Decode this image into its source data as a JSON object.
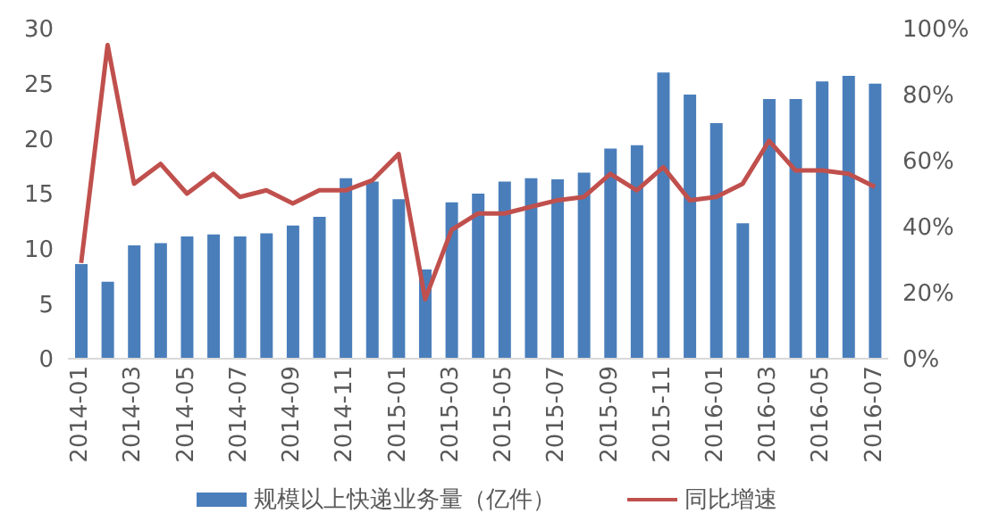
{
  "chart_data": {
    "type": "bar",
    "categories": [
      "2014-01",
      null,
      "2014-03",
      null,
      "2014-05",
      null,
      "2014-07",
      null,
      "2014-09",
      null,
      "2014-11",
      null,
      "2015-01",
      null,
      "2015-03",
      null,
      "2015-05",
      null,
      "2015-07",
      null,
      "2015-09",
      null,
      "2015-11",
      null,
      "2016-01",
      null,
      "2016-03",
      null,
      "2016-05",
      null,
      "2016-07"
    ],
    "series": [
      {
        "name": "规模以上快递业务量（亿件）",
        "color": "#4a7ebb",
        "values": [
          8.6,
          7.0,
          10.3,
          10.5,
          11.1,
          11.3,
          11.1,
          11.4,
          12.1,
          12.9,
          16.4,
          16.1,
          14.5,
          8.1,
          14.2,
          15.0,
          16.1,
          16.4,
          16.3,
          16.9,
          19.1,
          19.4,
          26.0,
          24.0,
          21.4,
          12.3,
          23.6,
          23.6,
          25.2,
          25.7,
          25.0
        ]
      },
      {
        "name": "同比增速",
        "type": "line",
        "axis": "y2",
        "color": "#c0504d",
        "values": [
          29,
          95,
          53,
          59,
          50,
          56,
          49,
          51,
          47,
          51,
          51,
          54,
          62,
          18,
          39,
          44,
          44,
          46,
          48,
          49,
          56,
          51,
          58,
          48,
          49,
          53,
          66,
          57,
          57,
          56,
          52
        ]
      }
    ],
    "ylim": [
      0,
      30
    ],
    "yticks": [
      0,
      5,
      10,
      15,
      20,
      25,
      30
    ],
    "y2lim": [
      0,
      100
    ],
    "y2ticks": [
      {
        "value": 0,
        "label": "0%"
      },
      {
        "value": 20,
        "label": "20%"
      },
      {
        "value": 40,
        "label": "40%"
      },
      {
        "value": 60,
        "label": "60%"
      },
      {
        "value": 80,
        "label": "80%"
      },
      {
        "value": 100,
        "label": "100%"
      }
    ],
    "grid": false,
    "legend": "bottom",
    "marker": "none"
  }
}
